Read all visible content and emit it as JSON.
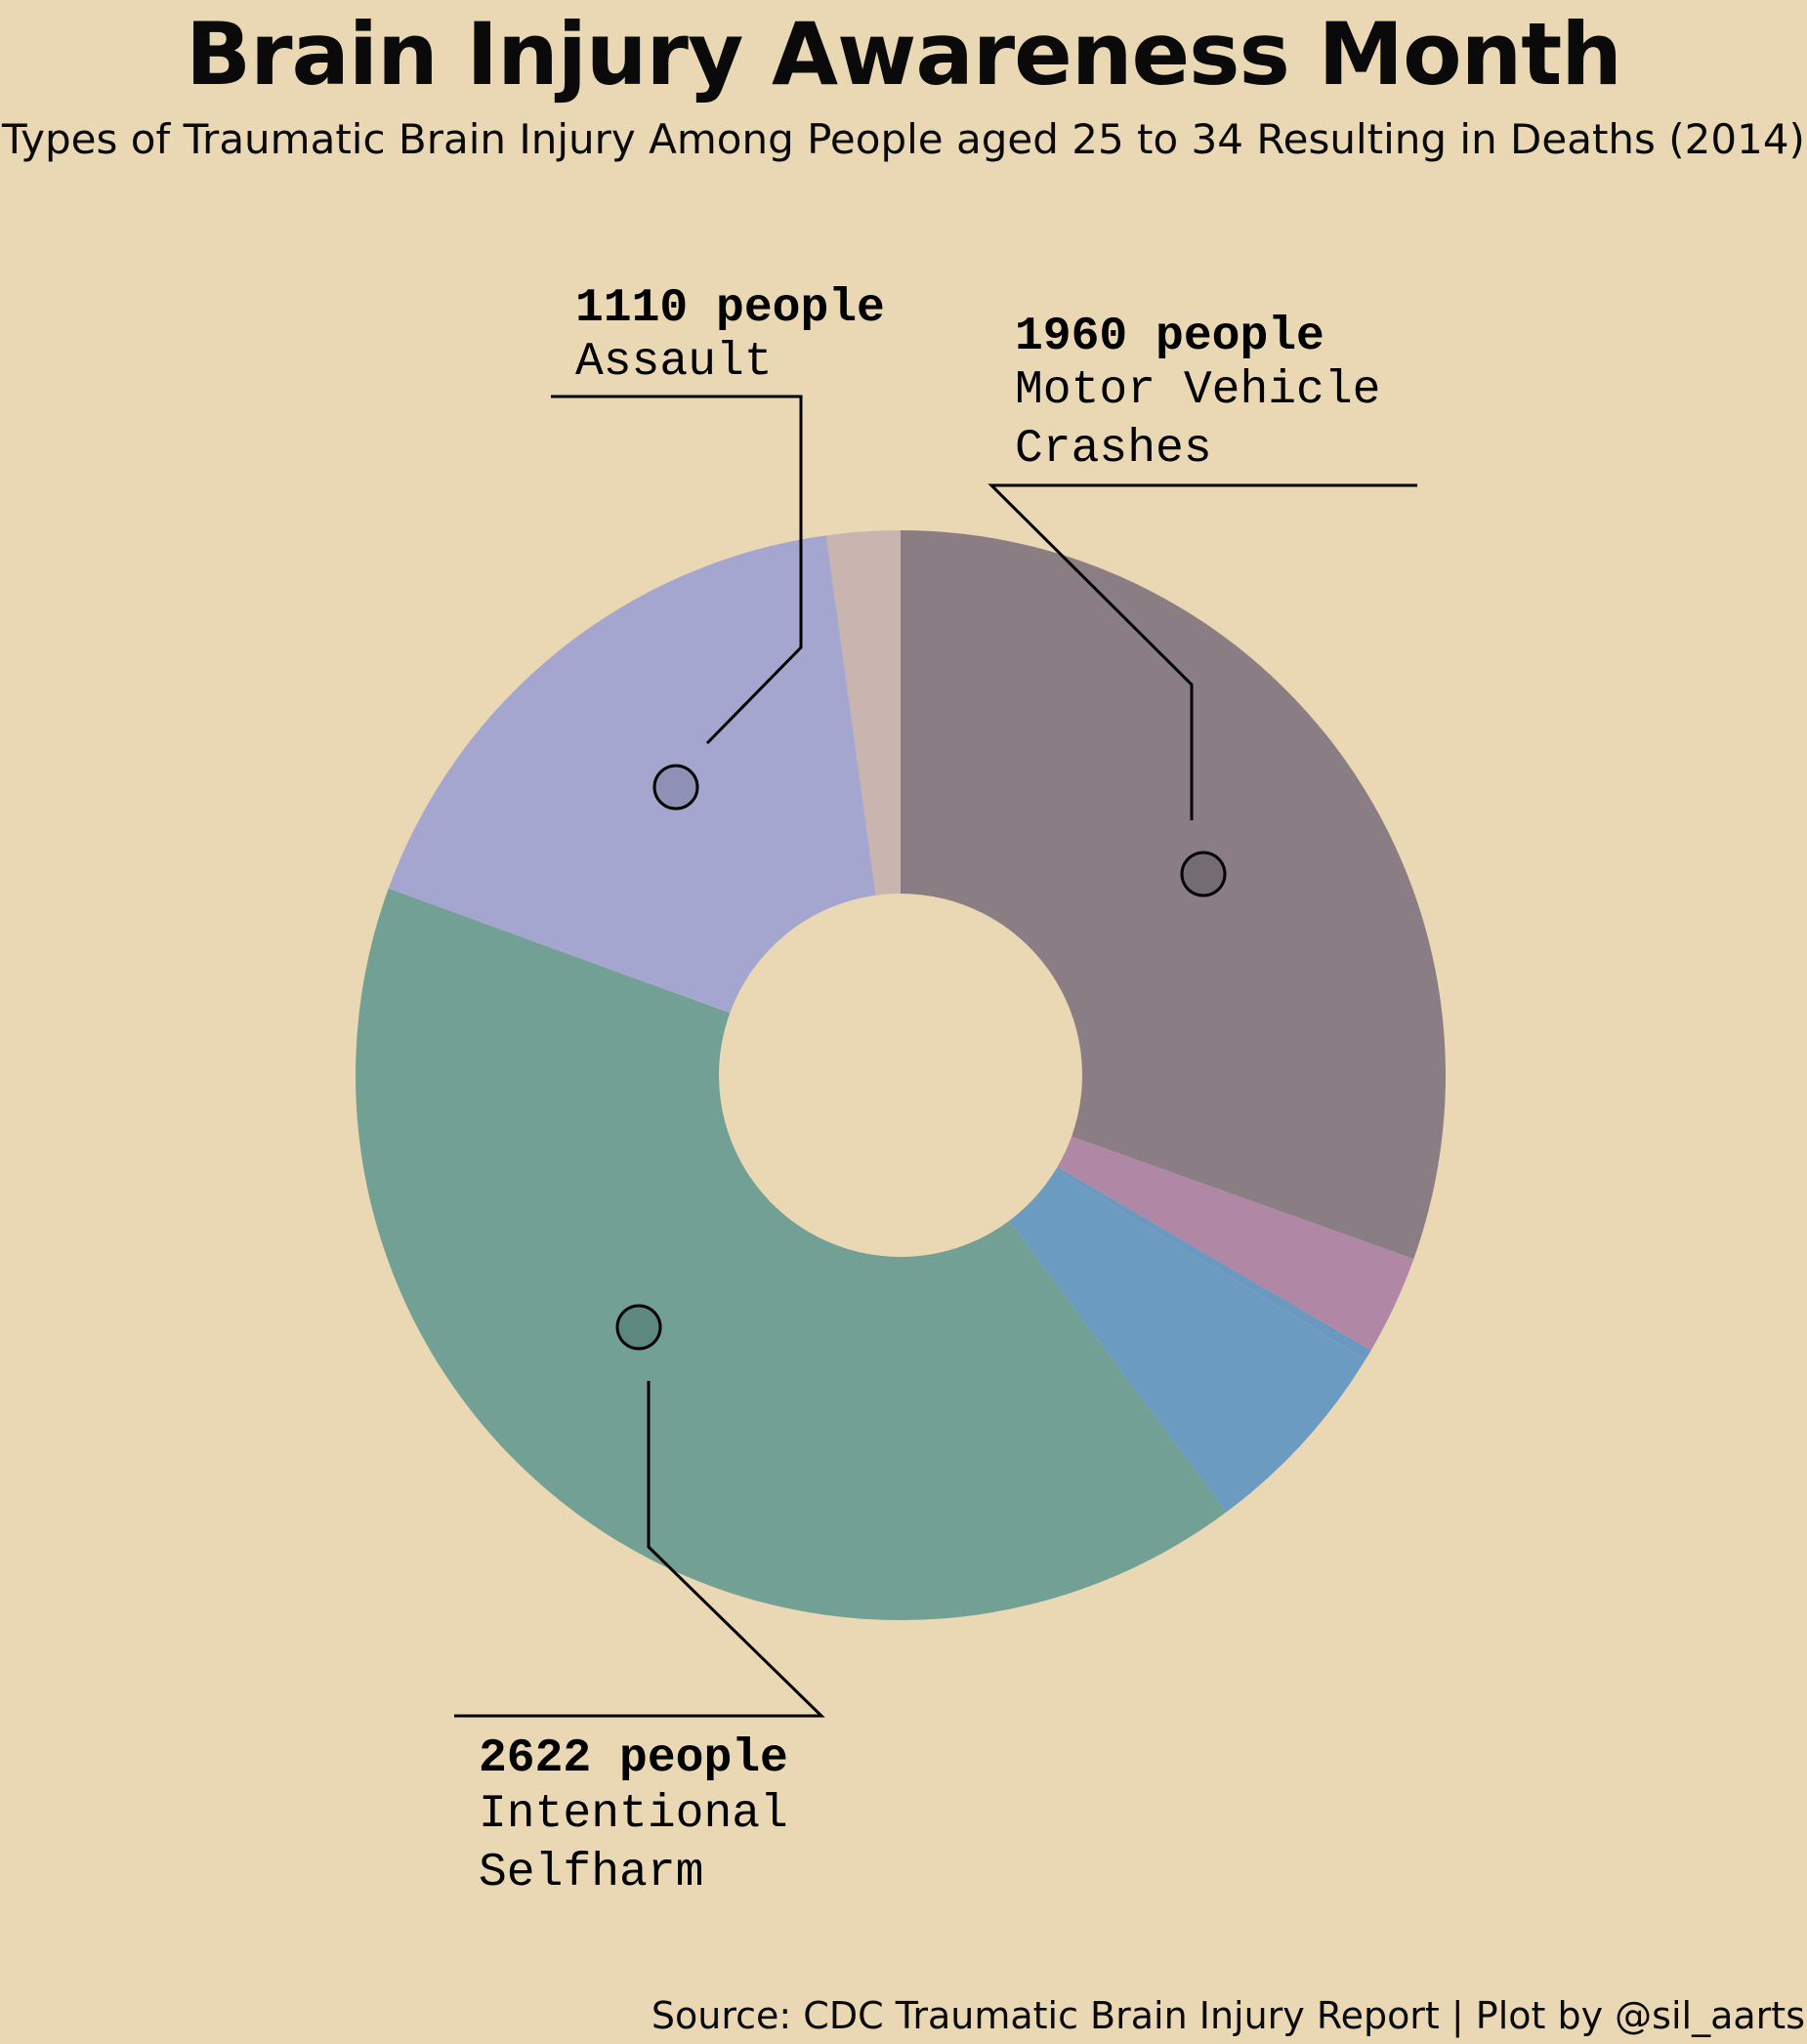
{
  "title": "Brain Injury Awareness Month",
  "subtitle": "Types of Traumatic Brain Injury Among People aged 25 to 34 Resulting in Deaths (2014)",
  "source": "Source: CDC Traumatic Brain Injury Report | Plot by @sil_aarts",
  "chart_data": {
    "type": "pie",
    "donut": true,
    "unit": "people",
    "slices": [
      {
        "name": "Motor Vehicle Crashes",
        "value": 1960,
        "color": "#8a7e84"
      },
      {
        "name": "",
        "value": 190,
        "color": "#b087a5"
      },
      {
        "name": "",
        "value": 20,
        "color": "#6a98c0"
      },
      {
        "name": "",
        "value": 390,
        "color": "#6c9bc2"
      },
      {
        "name": "Intentional Selfharm",
        "value": 2622,
        "color": "#72a095"
      },
      {
        "name": "Assault",
        "value": 1110,
        "color": "#a5a6d0"
      },
      {
        "name": "",
        "value": 140,
        "color": "#c9b4af"
      }
    ],
    "annotations": [
      {
        "count": "1110 people",
        "lines": [
          "Assault"
        ]
      },
      {
        "count": "1960 people",
        "lines": [
          "Motor Vehicle",
          "Crashes"
        ]
      },
      {
        "count": "2622 people",
        "lines": [
          "Intentional",
          "Selfharm"
        ]
      }
    ]
  }
}
